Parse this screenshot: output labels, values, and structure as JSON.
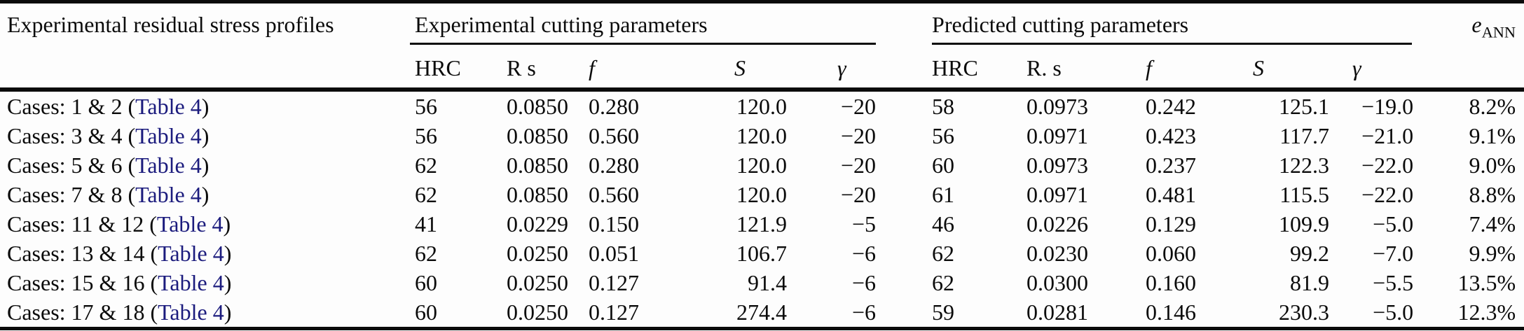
{
  "table": {
    "link_color": "#1b1b7d",
    "columns": {
      "row_header": "Experimental residual stress profiles",
      "exp_group": "Experimental cutting parameters",
      "pred_group": "Predicted cutting parameters",
      "sub_exp": [
        "HRC",
        "R s",
        "f",
        "S",
        "γ"
      ],
      "sub_pred": [
        "HRC",
        "R. s",
        "f",
        "S",
        "γ"
      ],
      "e_ann_label": "e",
      "e_ann_sub": "ANN"
    },
    "rows": [
      {
        "label_prefix": "Cases: 1 & 2 (",
        "link": "Table 4",
        "label_suffix": ")",
        "exp": [
          "56",
          "0.0850",
          "0.280",
          "120.0",
          "−20"
        ],
        "pred": [
          "58",
          "0.0973",
          "0.242",
          "125.1",
          "−19.0"
        ],
        "e_ann": "8.2%"
      },
      {
        "label_prefix": "Cases: 3 & 4 (",
        "link": "Table 4",
        "label_suffix": ")",
        "exp": [
          "56",
          "0.0850",
          "0.560",
          "120.0",
          "−20"
        ],
        "pred": [
          "56",
          "0.0971",
          "0.423",
          "117.7",
          "−21.0"
        ],
        "e_ann": "9.1%"
      },
      {
        "label_prefix": "Cases: 5 & 6 (",
        "link": "Table 4",
        "label_suffix": ")",
        "exp": [
          "62",
          "0.0850",
          "0.280",
          "120.0",
          "−20"
        ],
        "pred": [
          "60",
          "0.0973",
          "0.237",
          "122.3",
          "−22.0"
        ],
        "e_ann": "9.0%"
      },
      {
        "label_prefix": "Cases: 7 & 8 (",
        "link": "Table 4",
        "label_suffix": ")",
        "exp": [
          "62",
          "0.0850",
          "0.560",
          "120.0",
          "−20"
        ],
        "pred": [
          "61",
          "0.0971",
          "0.481",
          "115.5",
          "−22.0"
        ],
        "e_ann": "8.8%"
      },
      {
        "label_prefix": "Cases: 11 & 12 (",
        "link": "Table 4",
        "label_suffix": ")",
        "exp": [
          "41",
          "0.0229",
          "0.150",
          "121.9",
          "−5"
        ],
        "pred": [
          "46",
          "0.0226",
          "0.129",
          "109.9",
          "−5.0"
        ],
        "e_ann": "7.4%"
      },
      {
        "label_prefix": "Cases: 13 & 14 (",
        "link": "Table 4",
        "label_suffix": ")",
        "exp": [
          "62",
          "0.0250",
          "0.051",
          "106.7",
          "−6"
        ],
        "pred": [
          "62",
          "0.0230",
          "0.060",
          "99.2",
          "−7.0"
        ],
        "e_ann": "9.9%"
      },
      {
        "label_prefix": "Cases: 15 & 16 (",
        "link": "Table 4",
        "label_suffix": ")",
        "exp": [
          "60",
          "0.0250",
          "0.127",
          "91.4",
          "−6"
        ],
        "pred": [
          "62",
          "0.0300",
          "0.160",
          "81.9",
          "−5.5"
        ],
        "e_ann": "13.5%"
      },
      {
        "label_prefix": "Cases: 17 & 18 (",
        "link": "Table 4",
        "label_suffix": ")",
        "exp": [
          "60",
          "0.0250",
          "0.127",
          "274.4",
          "−6"
        ],
        "pred": [
          "59",
          "0.0281",
          "0.146",
          "230.3",
          "−5.0"
        ],
        "e_ann": "12.3%"
      }
    ]
  }
}
